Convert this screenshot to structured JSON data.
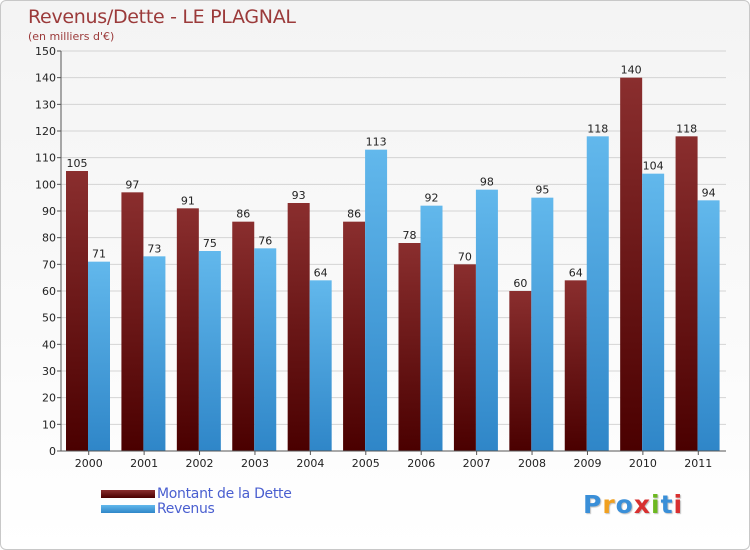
{
  "title": "Revenus/Dette - LE PLAGNAL",
  "subtitle": "(en milliers d'€)",
  "legend": {
    "dette_label": "Montant de la Dette",
    "revenus_label": "Revenus"
  },
  "logo": {
    "text": "Proxiti",
    "colors": [
      "#3a8fd8",
      "#f0a020",
      "#3a8fd8",
      "#d83030",
      "#6cb820",
      "#3a8fd8",
      "#d83030"
    ]
  },
  "chart_data": {
    "type": "bar",
    "title": "Revenus/Dette - LE PLAGNAL",
    "subtitle": "(en milliers d'€)",
    "categories": [
      "2000",
      "2001",
      "2002",
      "2003",
      "2004",
      "2005",
      "2006",
      "2007",
      "2008",
      "2009",
      "2010",
      "2011"
    ],
    "series": [
      {
        "name": "Montant de la Dette",
        "color": "#6e1515",
        "values": [
          105,
          97,
          91,
          86,
          93,
          86,
          78,
          70,
          60,
          64,
          140,
          118
        ]
      },
      {
        "name": "Revenus",
        "color": "#4aa3e0",
        "values": [
          71,
          73,
          75,
          76,
          64,
          113,
          92,
          98,
          95,
          118,
          104,
          94
        ]
      }
    ],
    "ylim": [
      0,
      150
    ],
    "yticks": [
      0,
      10,
      20,
      30,
      40,
      50,
      60,
      70,
      80,
      90,
      100,
      110,
      120,
      130,
      140,
      150
    ],
    "grid": true,
    "data_labels": true,
    "legend_position": "bottom-left"
  }
}
